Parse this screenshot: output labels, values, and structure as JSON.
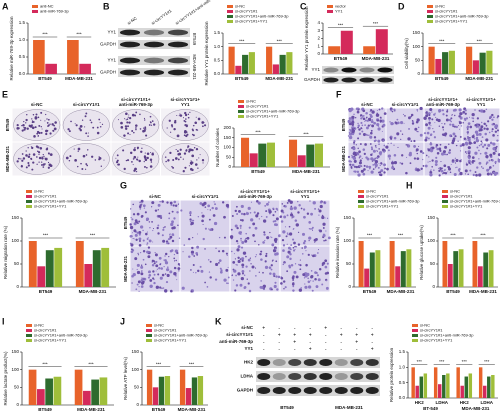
{
  "panel_labels": [
    "A",
    "B",
    "C",
    "D",
    "E",
    "F",
    "G",
    "H",
    "I",
    "J",
    "K"
  ],
  "chart_data": [
    {
      "type": "bar",
      "y_label": "Relative miR-769-3p expression",
      "categories": [
        "BT549",
        "MDA-MB-231"
      ],
      "series": [
        {
          "name": "anti-NC",
          "color": "#e8632a",
          "values": [
            1.0,
            1.0
          ]
        },
        {
          "name": "anti-miR-769-3p",
          "color": "#d42a5b",
          "values": [
            0.3,
            0.3
          ]
        }
      ],
      "ylim": [
        0,
        1.5
      ],
      "yticks": [
        {
          "value": 0,
          "label": "0.0"
        },
        {
          "value": 0.5,
          "label": "0.5"
        },
        {
          "value": 1,
          "label": "1.0"
        },
        {
          "value": 1.5,
          "label": "1.5"
        }
      ],
      "annotations": [
        "***",
        "***"
      ]
    },
    {
      "type": "bar",
      "y_label": "Relative YY1 protein expression",
      "categories": [
        "BT549",
        "MDA-MB-231"
      ],
      "series": [
        {
          "name": "si-NC",
          "color": "#e8632a",
          "values": [
            1.0,
            1.0
          ]
        },
        {
          "name": "si-circYY1#1",
          "color": "#d42a5b",
          "values": [
            0.3,
            0.35
          ]
        },
        {
          "name": "si-circYY1#1+anti-miR-769-3p",
          "color": "#2e6b2e",
          "values": [
            0.7,
            0.7
          ]
        },
        {
          "name": "si-circYY1#1+YY1",
          "color": "#9fbe3a",
          "values": [
            0.8,
            0.8
          ]
        }
      ],
      "ylim": [
        0,
        1.5
      ],
      "yticks": [
        {
          "value": 0,
          "label": "0.0"
        },
        {
          "value": 0.5,
          "label": "0.5"
        },
        {
          "value": 1,
          "label": "1.0"
        },
        {
          "value": 1.5,
          "label": "1.5"
        }
      ],
      "annotations": [
        "***",
        "***"
      ]
    },
    {
      "type": "bar",
      "y_label": "Relative YY1 protein expression",
      "categories": [
        "BT549",
        "MDA-MB-231"
      ],
      "series": [
        {
          "name": "vector",
          "color": "#e8632a",
          "values": [
            1.0,
            1.0
          ]
        },
        {
          "name": "YY1",
          "color": "#d42a5b",
          "values": [
            3.0,
            3.2
          ]
        }
      ],
      "ylim": [
        0,
        4
      ],
      "yticks": [
        0,
        1,
        2,
        3,
        4
      ],
      "annotations": [
        "***",
        "***"
      ]
    },
    {
      "type": "bar",
      "y_label": "Cell viability(%)",
      "categories": [
        "BT549",
        "MDA-MB-231"
      ],
      "series": [
        {
          "name": "si-NC",
          "color": "#e8632a",
          "values": [
            100,
            100
          ]
        },
        {
          "name": "si-circYY1#1",
          "color": "#d42a5b",
          "values": [
            55,
            50
          ]
        },
        {
          "name": "si-circYY1#1+anti-miR-769-3p",
          "color": "#2e6b2e",
          "values": [
            80,
            78
          ]
        },
        {
          "name": "si-circYY1#1+YY1",
          "color": "#9fbe3a",
          "values": [
            85,
            85
          ]
        }
      ],
      "ylim": [
        0,
        150
      ],
      "yticks": [
        0,
        50,
        100,
        150
      ],
      "annotations": [
        "***",
        "***"
      ]
    },
    {
      "type": "bar",
      "y_label": "Number of colonies",
      "categories": [
        "BT549",
        "MDA-MB-231"
      ],
      "series": [
        {
          "name": "si-NC",
          "color": "#e8632a",
          "values": [
            150,
            140
          ]
        },
        {
          "name": "si-circYY1#1",
          "color": "#d42a5b",
          "values": [
            70,
            60
          ]
        },
        {
          "name": "si-circYY1#1+anti-miR-769-3p",
          "color": "#2e6b2e",
          "values": [
            120,
            115
          ]
        },
        {
          "name": "si-circYY1#1+YY1",
          "color": "#9fbe3a",
          "values": [
            125,
            120
          ]
        }
      ],
      "ylim": [
        0,
        200
      ],
      "yticks": [
        0,
        50,
        100,
        150,
        200
      ],
      "annotations": [
        "***",
        "***"
      ]
    },
    {
      "type": "bar",
      "y_label": "Relative migration rate (%)",
      "categories": [
        "BT549",
        "MDA-MB-231"
      ],
      "series": [
        {
          "name": "si-NC",
          "color": "#e8632a",
          "values": [
            100,
            100
          ]
        },
        {
          "name": "si-circYY1#1",
          "color": "#d42a5b",
          "values": [
            45,
            50
          ]
        },
        {
          "name": "si-circYY1#1+anti-miR-769-3p",
          "color": "#2e6b2e",
          "values": [
            80,
            80
          ]
        },
        {
          "name": "si-circYY1#1+YY1",
          "color": "#9fbe3a",
          "values": [
            85,
            85
          ]
        }
      ],
      "ylim": [
        0,
        150
      ],
      "yticks": [
        0,
        50,
        100,
        150
      ],
      "annotations": [
        "***",
        "***"
      ]
    },
    {
      "type": "bar",
      "y_label": "Relative invasion rate (%)",
      "categories": [
        "BT549",
        "MDA-MB-231"
      ],
      "series": [
        {
          "name": "si-NC",
          "color": "#e8632a",
          "values": [
            100,
            100
          ]
        },
        {
          "name": "si-circYY1#1",
          "color": "#d42a5b",
          "values": [
            40,
            45
          ]
        },
        {
          "name": "si-circYY1#1+anti-miR-769-3p",
          "color": "#2e6b2e",
          "values": [
            75,
            78
          ]
        },
        {
          "name": "si-circYY1#1+YY1",
          "color": "#9fbe3a",
          "values": [
            80,
            82
          ]
        }
      ],
      "ylim": [
        0,
        150
      ],
      "yticks": [
        0,
        50,
        100,
        150
      ],
      "annotations": [
        "***",
        "***"
      ]
    },
    {
      "type": "bar",
      "y_label": "Relative glucose uptake(%)",
      "categories": [
        "BT549",
        "MDA-MB-231"
      ],
      "series": [
        {
          "name": "si-NC",
          "color": "#e8632a",
          "values": [
            100,
            100
          ]
        },
        {
          "name": "si-circYY1#1",
          "color": "#d42a5b",
          "values": [
            50,
            45
          ]
        },
        {
          "name": "si-circYY1#1+anti-miR-769-3p",
          "color": "#2e6b2e",
          "values": [
            78,
            75
          ]
        },
        {
          "name": "si-circYY1#1+YY1",
          "color": "#9fbe3a",
          "values": [
            82,
            80
          ]
        }
      ],
      "ylim": [
        0,
        150
      ],
      "yticks": [
        0,
        50,
        100,
        150
      ],
      "annotations": [
        "***",
        "***"
      ]
    },
    {
      "type": "bar",
      "y_label": "Relative lactate product(%)",
      "categories": [
        "BT549",
        "MDA-MB-231"
      ],
      "series": [
        {
          "name": "si-NC",
          "color": "#e8632a",
          "values": [
            100,
            100
          ]
        },
        {
          "name": "si-circYY1#1",
          "color": "#d42a5b",
          "values": [
            45,
            40
          ]
        },
        {
          "name": "si-circYY1#1+anti-miR-769-3p",
          "color": "#2e6b2e",
          "values": [
            75,
            72
          ]
        },
        {
          "name": "si-circYY1#1+YY1",
          "color": "#9fbe3a",
          "values": [
            80,
            78
          ]
        }
      ],
      "ylim": [
        0,
        150
      ],
      "yticks": [
        0,
        50,
        100,
        150
      ],
      "annotations": [
        "***",
        "***"
      ]
    },
    {
      "type": "bar",
      "y_label": "Relative ATP level(%)",
      "categories": [
        "BT549",
        "MDA-MB-231"
      ],
      "series": [
        {
          "name": "si-NC",
          "color": "#e8632a",
          "values": [
            100,
            100
          ]
        },
        {
          "name": "si-circYY1#1",
          "color": "#d42a5b",
          "values": [
            50,
            48
          ]
        },
        {
          "name": "si-circYY1#1+anti-miR-769-3p",
          "color": "#2e6b2e",
          "values": [
            80,
            78
          ]
        },
        {
          "name": "si-circYY1#1+YY1",
          "color": "#9fbe3a",
          "values": [
            82,
            82
          ]
        }
      ],
      "ylim": [
        0,
        150
      ],
      "yticks": [
        0,
        50,
        100,
        150
      ],
      "annotations": [
        "***",
        "***"
      ]
    },
    {
      "type": "bar",
      "y_label": "Relative protein expression",
      "categories": [
        "HK2",
        "LDHA",
        "HK2",
        "LDHA"
      ],
      "group_labels": [
        "BT-549",
        "MDA-MB-231"
      ],
      "series": [
        {
          "name": "si-NC",
          "color": "#e8632a",
          "values": [
            1.0,
            1.0,
            1.0,
            1.0
          ]
        },
        {
          "name": "si-circYY1#1",
          "color": "#d42a5b",
          "values": [
            0.4,
            0.45,
            0.4,
            0.4
          ]
        },
        {
          "name": "si-circYY1#1+anti-miR-769-3p",
          "color": "#2e6b2e",
          "values": [
            0.7,
            0.75,
            0.7,
            0.7
          ]
        },
        {
          "name": "si-circYY1#1+YY1",
          "color": "#9fbe3a",
          "values": [
            0.8,
            0.8,
            0.8,
            0.75
          ]
        }
      ],
      "ylim": [
        0,
        1.5
      ],
      "yticks": [
        {
          "value": 0,
          "label": "0.0"
        },
        {
          "value": 0.5,
          "label": "0.5"
        },
        {
          "value": 1,
          "label": "1.0"
        },
        {
          "value": 1.5,
          "label": "1.5"
        }
      ],
      "annotations": [
        "***",
        "***",
        "***",
        "***"
      ]
    }
  ],
  "blot_b": {
    "columns": [
      "si-NC",
      "si-circYY1#1",
      "si-circYY1#1+anti-miR-769-3p"
    ],
    "rows": [
      "YY1",
      "GAPDH",
      "YY1",
      "GAPDH"
    ],
    "groups": [
      "BT549",
      "MDA-MB-231"
    ]
  },
  "blot_c": {
    "rows": [
      "YY1",
      "GAPDH"
    ]
  },
  "images_e": {
    "columns": [
      [
        "si-NC"
      ],
      [
        "si-circYY1#1"
      ],
      [
        "si-circYY1#1+",
        "anti-miR-769-3p"
      ],
      [
        "si-circYY1#1+",
        "YY1"
      ]
    ],
    "rows": [
      "BT549",
      "MDA-MB-231"
    ]
  },
  "images_f": {
    "columns": [
      [
        "si-NC"
      ],
      [
        "si-circYY1#1"
      ],
      [
        "si-circYY1#1+",
        "anti-miR-769-3p"
      ],
      [
        "si-circYY1#1+",
        "YY1"
      ]
    ],
    "rows": [
      "BT549",
      "MDA-MB-231"
    ]
  },
  "images_g": {
    "columns": [
      [
        "si-NC"
      ],
      [
        "si-circYY1#1"
      ],
      [
        "si-circYY1#1+",
        "anti-miR-769-3p"
      ],
      [
        "si-circYY1#1+",
        "YY1"
      ]
    ],
    "rows": [
      "BT549",
      "MDA-MB-231"
    ]
  },
  "blot_k": {
    "conditions": [
      "si-NC",
      "si-circYY1#1",
      "anti-miR-769-3p",
      "YY1"
    ],
    "signs": [
      [
        "+",
        "-",
        "-",
        "-",
        "+",
        "-",
        "-",
        "-"
      ],
      [
        "-",
        "+",
        "+",
        "+",
        "-",
        "+",
        "+",
        "+"
      ],
      [
        "-",
        "-",
        "+",
        "-",
        "-",
        "-",
        "+",
        "-"
      ],
      [
        "-",
        "-",
        "-",
        "+",
        "-",
        "-",
        "-",
        "+"
      ]
    ],
    "rows": [
      "HK2",
      "LDHA",
      "GAPDH"
    ],
    "groups": [
      "BT549",
      "MDA-MB-231"
    ]
  }
}
